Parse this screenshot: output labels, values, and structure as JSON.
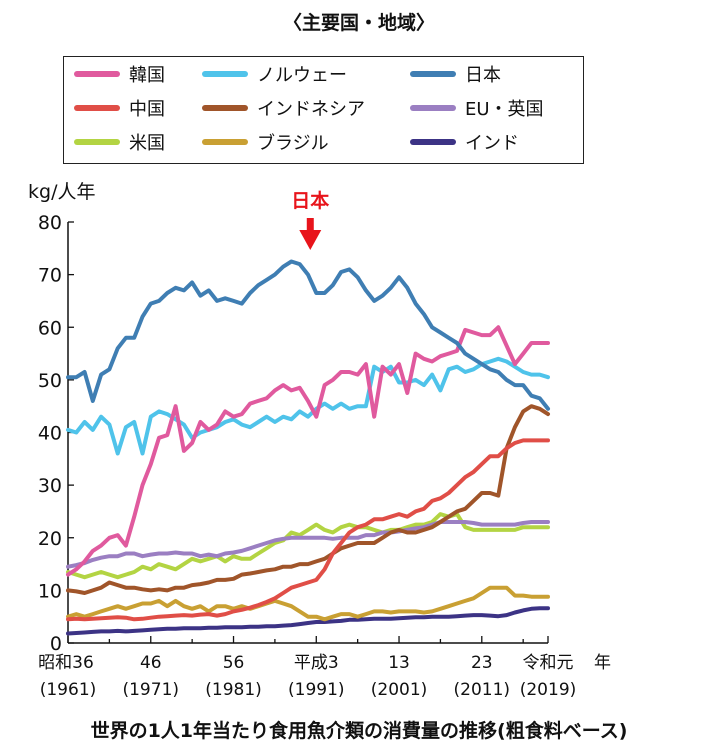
{
  "subtitle": "〈主要国・地域〉",
  "caption": "世界の1人1年当たり食用魚介類の消費量の推移(粗食料ベース)",
  "chart_data": {
    "type": "line",
    "title": "世界の1人1年当たり食用魚介類の消費量の推移(粗食料ベース)",
    "subtitle": "〈主要国・地域〉",
    "ylabel": "kg/人年",
    "xlabel": "年",
    "ylim": [
      0,
      80
    ],
    "xlim": [
      1961,
      2019
    ],
    "yticks": [
      0,
      10,
      20,
      30,
      40,
      50,
      60,
      70,
      80
    ],
    "xticks": [
      {
        "x": 1961,
        "line1": "昭和36",
        "line2": "(1961)"
      },
      {
        "x": 1971,
        "line1": "46",
        "line2": "(1971)"
      },
      {
        "x": 1981,
        "line1": "56",
        "line2": "(1981)"
      },
      {
        "x": 1991,
        "line1": "平成3",
        "line2": "(1991)"
      },
      {
        "x": 2001,
        "line1": "13",
        "line2": "(2001)"
      },
      {
        "x": 2011,
        "line1": "23",
        "line2": "(2011)"
      },
      {
        "x": 2019,
        "line1": "令和元",
        "line2": "(2019)"
      }
    ],
    "annotation": {
      "text": "日本",
      "x": 1991,
      "color": "#e8141b"
    },
    "grid": false,
    "legend_position": "top",
    "series": [
      {
        "name": "日本",
        "color": "#3f7eb3",
        "x": [
          1961,
          1962,
          1963,
          1964,
          1965,
          1966,
          1967,
          1968,
          1969,
          1970,
          1971,
          1972,
          1973,
          1974,
          1975,
          1976,
          1977,
          1978,
          1979,
          1980,
          1981,
          1982,
          1983,
          1984,
          1985,
          1986,
          1987,
          1988,
          1989,
          1990,
          1991,
          1992,
          1993,
          1994,
          1995,
          1996,
          1997,
          1998,
          1999,
          2000,
          2001,
          2002,
          2003,
          2004,
          2005,
          2006,
          2007,
          2008,
          2009,
          2010,
          2011,
          2012,
          2013,
          2014,
          2015,
          2016,
          2017,
          2018,
          2019
        ],
        "values": [
          50.5,
          50.5,
          51.5,
          46,
          51,
          52,
          56,
          58,
          58,
          62,
          64.5,
          65,
          66.5,
          67.5,
          67,
          68.5,
          66,
          67,
          65,
          65.5,
          65,
          64.5,
          66.5,
          68,
          69,
          70,
          71.5,
          72.5,
          72,
          70,
          66.5,
          66.5,
          68,
          70.5,
          71,
          69.5,
          67,
          65,
          66,
          67.5,
          69.5,
          67.5,
          64.5,
          62.5,
          60,
          59,
          58,
          57,
          55,
          54,
          53,
          52,
          51.5,
          50,
          49,
          49,
          47,
          46.5,
          44.5
        ]
      },
      {
        "name": "韓国",
        "color": "#e05a9e",
        "x": [
          1961,
          1962,
          1963,
          1964,
          1965,
          1966,
          1967,
          1968,
          1969,
          1970,
          1971,
          1972,
          1973,
          1974,
          1975,
          1976,
          1977,
          1978,
          1979,
          1980,
          1981,
          1982,
          1983,
          1984,
          1985,
          1986,
          1987,
          1988,
          1989,
          1990,
          1991,
          1992,
          1993,
          1994,
          1995,
          1996,
          1997,
          1998,
          1999,
          2000,
          2001,
          2002,
          2003,
          2004,
          2005,
          2006,
          2007,
          2008,
          2009,
          2010,
          2011,
          2012,
          2013,
          2014,
          2015,
          2016,
          2017,
          2018,
          2019
        ],
        "values": [
          13,
          14,
          15.5,
          17.5,
          18.5,
          20,
          20.5,
          18.5,
          24,
          30,
          34,
          39,
          39.5,
          45,
          36.5,
          38,
          42,
          40.5,
          41.5,
          44,
          43,
          43.5,
          45.5,
          46,
          46.5,
          48,
          49,
          48,
          48.5,
          46,
          43,
          49,
          50,
          51.5,
          51.5,
          51,
          53,
          43,
          52.5,
          51,
          53,
          47.5,
          55,
          54,
          53.5,
          54.5,
          55,
          55.5,
          59.5,
          59,
          58.5,
          58.5,
          60,
          56.5,
          53,
          55,
          57,
          57,
          57
        ]
      },
      {
        "name": "ノルウェー",
        "color": "#4fc3ea",
        "x": [
          1961,
          1962,
          1963,
          1964,
          1965,
          1966,
          1967,
          1968,
          1969,
          1970,
          1971,
          1972,
          1973,
          1974,
          1975,
          1976,
          1977,
          1978,
          1979,
          1980,
          1981,
          1982,
          1983,
          1984,
          1985,
          1986,
          1987,
          1988,
          1989,
          1990,
          1991,
          1992,
          1993,
          1994,
          1995,
          1996,
          1997,
          1998,
          1999,
          2000,
          2001,
          2002,
          2003,
          2004,
          2005,
          2006,
          2007,
          2008,
          2009,
          2010,
          2011,
          2012,
          2013,
          2014,
          2015,
          2016,
          2017,
          2018,
          2019
        ],
        "values": [
          40.5,
          40,
          42,
          40.5,
          43,
          41.5,
          36,
          41,
          42,
          36,
          43,
          44,
          43.5,
          42.5,
          41.5,
          39,
          40,
          40.5,
          41,
          42,
          42.5,
          41.5,
          41,
          42,
          43,
          42,
          43,
          42.5,
          44,
          43,
          44.5,
          45.5,
          44.5,
          45.5,
          44.5,
          45,
          45,
          52.5,
          51.5,
          52.5,
          49.5,
          49.5,
          50,
          49,
          51,
          48,
          52,
          52.5,
          51.5,
          52,
          53,
          53.5,
          54,
          53.5,
          52.5,
          51.5,
          51,
          51,
          50.5
        ]
      },
      {
        "name": "中国",
        "color": "#e04e47",
        "x": [
          1961,
          1962,
          1963,
          1964,
          1965,
          1966,
          1967,
          1968,
          1969,
          1970,
          1971,
          1972,
          1973,
          1974,
          1975,
          1976,
          1977,
          1978,
          1979,
          1980,
          1981,
          1982,
          1983,
          1984,
          1985,
          1986,
          1987,
          1988,
          1989,
          1990,
          1991,
          1992,
          1993,
          1994,
          1995,
          1996,
          1997,
          1998,
          1999,
          2000,
          2001,
          2002,
          2003,
          2004,
          2005,
          2006,
          2007,
          2008,
          2009,
          2010,
          2011,
          2012,
          2013,
          2014,
          2015,
          2016,
          2017,
          2018,
          2019
        ],
        "values": [
          4.5,
          4.6,
          4.5,
          4.6,
          4.7,
          4.8,
          4.9,
          4.8,
          4.5,
          4.6,
          4.8,
          5,
          5.1,
          5.2,
          5.3,
          5.2,
          5.4,
          5.5,
          5.2,
          5.5,
          6,
          6.3,
          6.7,
          7.2,
          7.8,
          8.5,
          9.5,
          10.5,
          11,
          11.5,
          12,
          14,
          17,
          19,
          21,
          22,
          22.5,
          23.5,
          23.5,
          24,
          24.5,
          24,
          25,
          25.5,
          27,
          27.5,
          28.5,
          30,
          31.5,
          32.5,
          34,
          35.5,
          35.5,
          37,
          38,
          38.5,
          38.5,
          38.5,
          38.5
        ]
      },
      {
        "name": "インドネシア",
        "color": "#a0552a",
        "x": [
          1961,
          1962,
          1963,
          1964,
          1965,
          1966,
          1967,
          1968,
          1969,
          1970,
          1971,
          1972,
          1973,
          1974,
          1975,
          1976,
          1977,
          1978,
          1979,
          1980,
          1981,
          1982,
          1983,
          1984,
          1985,
          1986,
          1987,
          1988,
          1989,
          1990,
          1991,
          1992,
          1993,
          1994,
          1995,
          1996,
          1997,
          1998,
          1999,
          2000,
          2001,
          2002,
          2003,
          2004,
          2005,
          2006,
          2007,
          2008,
          2009,
          2010,
          2011,
          2012,
          2013,
          2014,
          2015,
          2016,
          2017,
          2018,
          2019
        ],
        "values": [
          10,
          9.8,
          9.5,
          10,
          10.5,
          11.5,
          11,
          10.5,
          10.5,
          10.2,
          10,
          10.2,
          10,
          10.5,
          10.5,
          11,
          11.2,
          11.5,
          12,
          12,
          12.2,
          13,
          13.2,
          13.5,
          13.8,
          14,
          14.5,
          14.5,
          15,
          15,
          15.5,
          16,
          17,
          18,
          18.5,
          19,
          19,
          19,
          20,
          21,
          21.5,
          21,
          21,
          21.5,
          22,
          23,
          24,
          25,
          25.5,
          27,
          28.5,
          28.5,
          28,
          37,
          41,
          44,
          45,
          44.5,
          43.5
        ]
      },
      {
        "name": "EU・英国",
        "color": "#9b7fc2",
        "x": [
          1961,
          1962,
          1963,
          1964,
          1965,
          1966,
          1967,
          1968,
          1969,
          1970,
          1971,
          1972,
          1973,
          1974,
          1975,
          1976,
          1977,
          1978,
          1979,
          1980,
          1981,
          1982,
          1983,
          1984,
          1985,
          1986,
          1987,
          1988,
          1989,
          1990,
          1991,
          1992,
          1993,
          1994,
          1995,
          1996,
          1997,
          1998,
          1999,
          2000,
          2001,
          2002,
          2003,
          2004,
          2005,
          2006,
          2007,
          2008,
          2009,
          2010,
          2011,
          2012,
          2013,
          2014,
          2015,
          2016,
          2017,
          2018,
          2019
        ],
        "values": [
          14.5,
          14.8,
          15.2,
          15.8,
          16.2,
          16.5,
          16.5,
          17,
          17,
          16.5,
          16.8,
          17,
          17,
          17.2,
          17,
          17,
          16.5,
          16.8,
          16.5,
          17,
          17.2,
          17.5,
          18,
          18.5,
          19,
          19.5,
          19.8,
          20,
          20,
          20,
          20,
          20,
          19.8,
          20,
          20,
          20,
          20.5,
          20.5,
          21,
          21,
          21.2,
          21.5,
          21.8,
          22,
          22.5,
          23,
          23,
          23,
          23,
          22.8,
          22.5,
          22.5,
          22.5,
          22.5,
          22.5,
          22.8,
          23,
          23,
          23
        ]
      },
      {
        "name": "米国",
        "color": "#b3d443",
        "x": [
          1961,
          1962,
          1963,
          1964,
          1965,
          1966,
          1967,
          1968,
          1969,
          1970,
          1971,
          1972,
          1973,
          1974,
          1975,
          1976,
          1977,
          1978,
          1979,
          1980,
          1981,
          1982,
          1983,
          1984,
          1985,
          1986,
          1987,
          1988,
          1989,
          1990,
          1991,
          1992,
          1993,
          1994,
          1995,
          1996,
          1997,
          1998,
          1999,
          2000,
          2001,
          2002,
          2003,
          2004,
          2005,
          2006,
          2007,
          2008,
          2009,
          2010,
          2011,
          2012,
          2013,
          2014,
          2015,
          2016,
          2017,
          2018,
          2019
        ],
        "values": [
          13.5,
          13,
          12.5,
          13,
          13.5,
          13,
          12.5,
          13,
          13.5,
          14.5,
          14,
          15,
          14.5,
          14,
          15,
          16,
          15.5,
          16,
          16.5,
          15.5,
          16.5,
          16,
          16,
          17,
          18,
          19,
          19.5,
          21,
          20.5,
          21.5,
          22.5,
          21.5,
          21,
          22,
          22.5,
          22,
          22,
          21.5,
          21,
          21.5,
          21.5,
          22,
          22.5,
          22.5,
          23,
          24.5,
          24,
          24.5,
          22,
          21.5,
          21.5,
          21.5,
          21.5,
          21.5,
          21.5,
          22,
          22,
          22,
          22
        ]
      },
      {
        "name": "ブラジル",
        "color": "#c9a033",
        "x": [
          1961,
          1962,
          1963,
          1964,
          1965,
          1966,
          1967,
          1968,
          1969,
          1970,
          1971,
          1972,
          1973,
          1974,
          1975,
          1976,
          1977,
          1978,
          1979,
          1980,
          1981,
          1982,
          1983,
          1984,
          1985,
          1986,
          1987,
          1988,
          1989,
          1990,
          1991,
          1992,
          1993,
          1994,
          1995,
          1996,
          1997,
          1998,
          1999,
          2000,
          2001,
          2002,
          2003,
          2004,
          2005,
          2006,
          2007,
          2008,
          2009,
          2010,
          2011,
          2012,
          2013,
          2014,
          2015,
          2016,
          2017,
          2018,
          2019
        ],
        "values": [
          5,
          5.5,
          5,
          5.5,
          6,
          6.5,
          7,
          6.5,
          7,
          7.5,
          7.5,
          8,
          7,
          8,
          7,
          6.5,
          7,
          6,
          7,
          7,
          6.5,
          7,
          6.5,
          7,
          7.5,
          8,
          7.5,
          7,
          6,
          5,
          5,
          4.5,
          5,
          5.5,
          5.5,
          5,
          5.5,
          6,
          6,
          5.8,
          6,
          6,
          6,
          5.8,
          6,
          6.5,
          7,
          7.5,
          8,
          8.5,
          9.5,
          10.5,
          10.5,
          10.5,
          9,
          9,
          8.8,
          8.8,
          8.8
        ]
      },
      {
        "name": "インド",
        "color": "#3c3385",
        "x": [
          1961,
          1962,
          1963,
          1964,
          1965,
          1966,
          1967,
          1968,
          1969,
          1970,
          1971,
          1972,
          1973,
          1974,
          1975,
          1976,
          1977,
          1978,
          1979,
          1980,
          1981,
          1982,
          1983,
          1984,
          1985,
          1986,
          1987,
          1988,
          1989,
          1990,
          1991,
          1992,
          1993,
          1994,
          1995,
          1996,
          1997,
          1998,
          1999,
          2000,
          2001,
          2002,
          2003,
          2004,
          2005,
          2006,
          2007,
          2008,
          2009,
          2010,
          2011,
          2012,
          2013,
          2014,
          2015,
          2016,
          2017,
          2018,
          2019
        ],
        "values": [
          1.8,
          1.9,
          2,
          2.1,
          2.2,
          2.2,
          2.3,
          2.2,
          2.3,
          2.4,
          2.5,
          2.6,
          2.7,
          2.7,
          2.8,
          2.8,
          2.8,
          2.9,
          2.9,
          3,
          3,
          3,
          3.1,
          3.1,
          3.2,
          3.2,
          3.3,
          3.4,
          3.6,
          3.8,
          4,
          4,
          4.1,
          4.2,
          4.4,
          4.4,
          4.5,
          4.6,
          4.6,
          4.6,
          4.7,
          4.8,
          4.9,
          4.9,
          5,
          5,
          5,
          5.1,
          5.2,
          5.3,
          5.3,
          5.2,
          5.1,
          5.3,
          5.8,
          6.2,
          6.5,
          6.6,
          6.6
        ]
      }
    ]
  }
}
